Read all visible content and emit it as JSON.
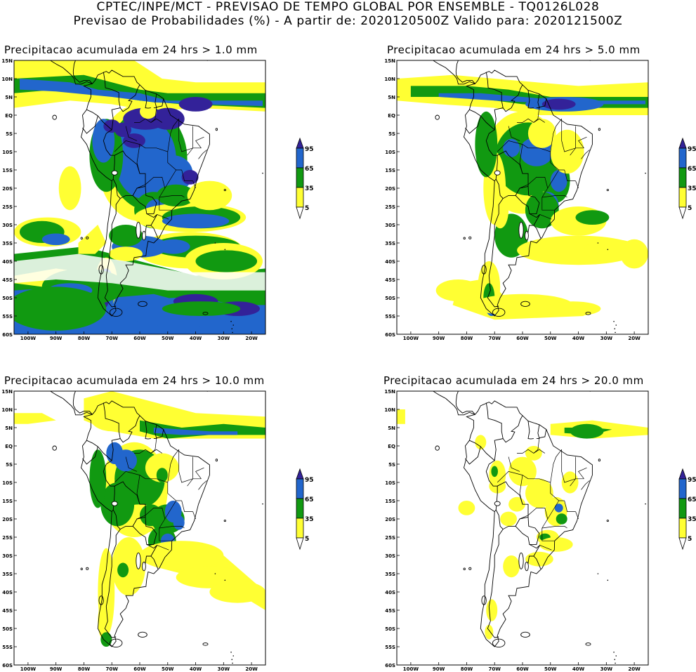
{
  "header": {
    "line1": "CPTEC/INPE/MCT - PREVISAO DE TEMPO GLOBAL POR ENSEMBLE - TQ0126L028",
    "line2": "Previsao de Probabilidades (%) -  A partir de: 2020120500Z  Valido para: 2020121500Z"
  },
  "axes": {
    "lat_labels": [
      "15N",
      "10N",
      "5N",
      "EQ",
      "5S",
      "10S",
      "15S",
      "20S",
      "25S",
      "30S",
      "35S",
      "40S",
      "45S",
      "50S",
      "55S",
      "60S"
    ],
    "lon_labels": [
      "100W",
      "90W",
      "80W",
      "70W",
      "60W",
      "50W",
      "40W",
      "30W",
      "20W"
    ]
  },
  "legend": {
    "levels": [
      "95",
      "65",
      "35",
      "5"
    ],
    "colors": {
      "p5": "#ffff33",
      "p35": "#119911",
      "p65": "#2266cc",
      "p95": "#332299"
    }
  },
  "panels": [
    {
      "title": "Precipitacao acumulada em 24 hrs > 1.0 mm"
    },
    {
      "title": "Precipitacao acumulada em 24 hrs > 5.0 mm"
    },
    {
      "title": "Precipitacao acumulada em 24 hrs > 10.0 mm"
    },
    {
      "title": "Precipitacao acumulada em 24 hrs > 20.0 mm"
    }
  ]
}
